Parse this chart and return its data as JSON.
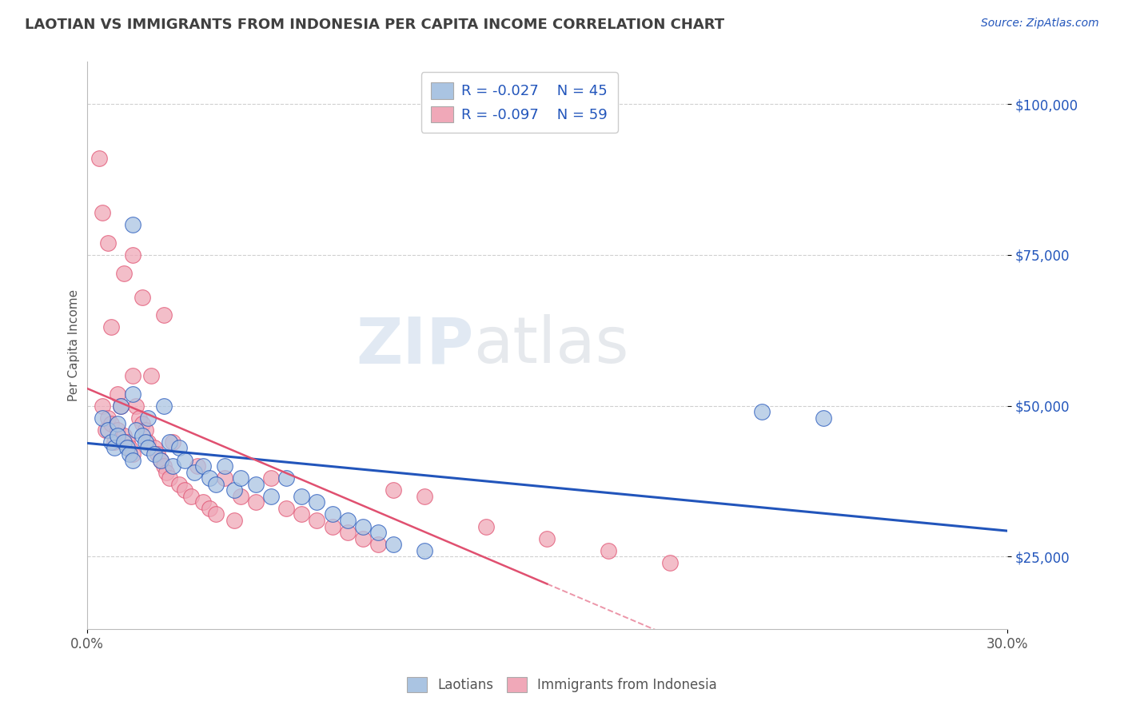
{
  "title": "LAOTIAN VS IMMIGRANTS FROM INDONESIA PER CAPITA INCOME CORRELATION CHART",
  "source": "Source: ZipAtlas.com",
  "ylabel": "Per Capita Income",
  "xlim": [
    0.0,
    0.3
  ],
  "ylim": [
    13000,
    107000
  ],
  "ytick_labels": [
    "$25,000",
    "$50,000",
    "$75,000",
    "$100,000"
  ],
  "ytick_values": [
    25000,
    50000,
    75000,
    100000
  ],
  "background_color": "#ffffff",
  "grid_color": "#d0d0d0",
  "legend_blue_label": "Laotians",
  "legend_pink_label": "Immigrants from Indonesia",
  "blue_R": -0.027,
  "blue_N": 45,
  "pink_R": -0.097,
  "pink_N": 59,
  "blue_color": "#aac4e2",
  "pink_color": "#f0a8b8",
  "blue_line_color": "#2255bb",
  "pink_line_color": "#e05070",
  "title_color": "#404040",
  "source_color": "#2255bb",
  "legend_text_color": "#2255bb",
  "blue_scatter_x": [
    0.005,
    0.007,
    0.008,
    0.009,
    0.01,
    0.01,
    0.011,
    0.012,
    0.013,
    0.014,
    0.015,
    0.015,
    0.016,
    0.018,
    0.019,
    0.02,
    0.02,
    0.022,
    0.024,
    0.025,
    0.027,
    0.028,
    0.03,
    0.032,
    0.035,
    0.038,
    0.04,
    0.042,
    0.045,
    0.048,
    0.05,
    0.055,
    0.06,
    0.065,
    0.07,
    0.075,
    0.08,
    0.085,
    0.09,
    0.095,
    0.1,
    0.11,
    0.22,
    0.24,
    0.015
  ],
  "blue_scatter_y": [
    48000,
    46000,
    44000,
    43000,
    47000,
    45000,
    50000,
    44000,
    43000,
    42000,
    41000,
    52000,
    46000,
    45000,
    44000,
    48000,
    43000,
    42000,
    41000,
    50000,
    44000,
    40000,
    43000,
    41000,
    39000,
    40000,
    38000,
    37000,
    40000,
    36000,
    38000,
    37000,
    35000,
    38000,
    35000,
    34000,
    32000,
    31000,
    30000,
    29000,
    27000,
    26000,
    49000,
    48000,
    80000
  ],
  "pink_scatter_x": [
    0.004,
    0.005,
    0.006,
    0.007,
    0.008,
    0.009,
    0.01,
    0.01,
    0.011,
    0.012,
    0.013,
    0.014,
    0.015,
    0.015,
    0.016,
    0.017,
    0.018,
    0.019,
    0.02,
    0.021,
    0.022,
    0.023,
    0.024,
    0.025,
    0.026,
    0.027,
    0.028,
    0.03,
    0.032,
    0.034,
    0.036,
    0.038,
    0.04,
    0.042,
    0.045,
    0.048,
    0.05,
    0.055,
    0.06,
    0.065,
    0.07,
    0.075,
    0.08,
    0.085,
    0.09,
    0.095,
    0.1,
    0.11,
    0.13,
    0.15,
    0.17,
    0.19,
    0.008,
    0.012,
    0.018,
    0.025,
    0.005,
    0.007,
    0.015
  ],
  "pink_scatter_y": [
    91000,
    50000,
    46000,
    48000,
    47000,
    44000,
    52000,
    46000,
    50000,
    45000,
    44000,
    43000,
    42000,
    55000,
    50000,
    48000,
    47000,
    46000,
    44000,
    55000,
    43000,
    42000,
    41000,
    40000,
    39000,
    38000,
    44000,
    37000,
    36000,
    35000,
    40000,
    34000,
    33000,
    32000,
    38000,
    31000,
    35000,
    34000,
    38000,
    33000,
    32000,
    31000,
    30000,
    29000,
    28000,
    27000,
    36000,
    35000,
    30000,
    28000,
    26000,
    24000,
    63000,
    72000,
    68000,
    65000,
    82000,
    77000,
    75000
  ]
}
